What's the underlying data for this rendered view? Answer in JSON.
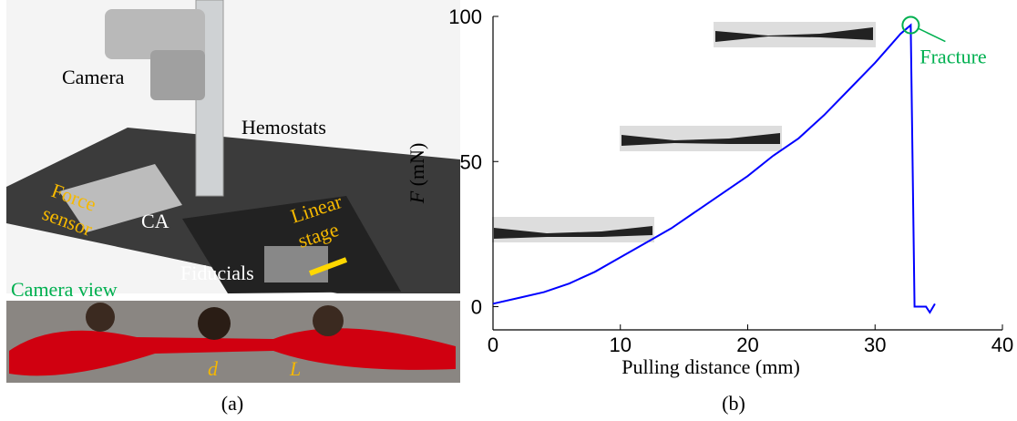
{
  "panel_a": {
    "camera": "Camera",
    "hemostats": "Hemostats",
    "force_sensor": [
      "Force",
      "sensor"
    ],
    "ca": "CA",
    "linear_stage": [
      "Linear",
      "stage"
    ],
    "fiducials": "Fiducials",
    "camera_view": "Camera view",
    "d": "d",
    "L": "L"
  },
  "captions": [
    "(a)",
    "(b)"
  ],
  "chart_data": {
    "type": "line",
    "color": "#0000ff",
    "x": [
      0,
      2,
      4,
      6,
      8,
      10,
      12,
      14,
      16,
      18,
      20,
      22,
      24,
      26,
      28,
      30,
      31,
      32,
      32.8,
      33.1,
      33.5,
      34,
      34.3,
      34.7
    ],
    "values": [
      1,
      3,
      5,
      8,
      12,
      17,
      22,
      27,
      33,
      39,
      45,
      52,
      58,
      66,
      75,
      84,
      89,
      94,
      97,
      0,
      0,
      0,
      -2,
      1
    ],
    "xlim": [
      0,
      40
    ],
    "xticks": [
      0,
      10,
      20,
      30,
      40
    ],
    "ylim": [
      -8,
      100
    ],
    "yticks": [
      0,
      50,
      100
    ],
    "xlabel": "Pulling distance (mm)",
    "ylabel_symbol": "F",
    "ylabel_unit": "(mN)",
    "annotation": "Fracture",
    "annotation_color": "#00b050"
  }
}
